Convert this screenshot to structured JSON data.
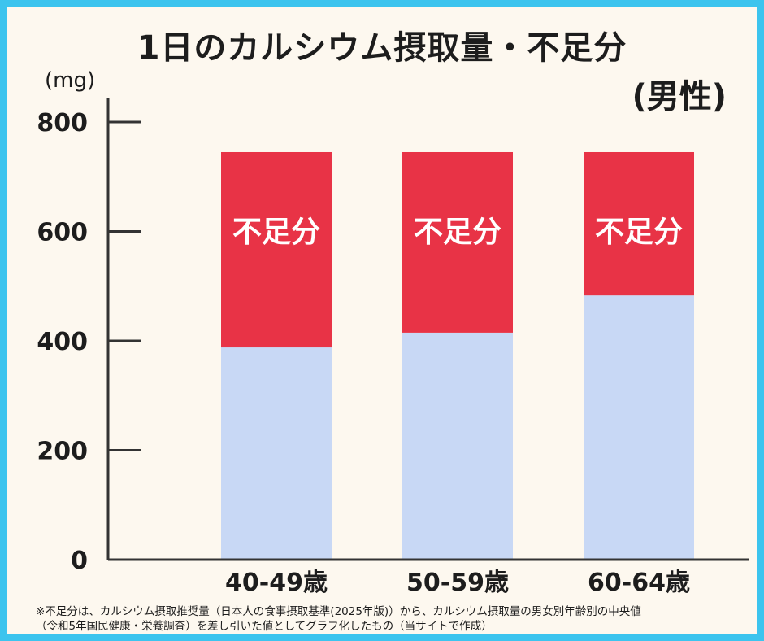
{
  "title": "1日のカルシウム摂取量・不足分",
  "subtitle": "(男性)",
  "unit": "(mg)",
  "notes": [
    "※不足分は、カルシウム摂取推奨量（日本人の食事摂取基準(2025年版)）から、カルシウム摂取量の男女別年齢別の中央値",
    "（令和5年国民健康・栄養調査）を差し引いた値としてグラフ化したもの（当サイトで作成）"
  ],
  "chart_data": {
    "type": "bar",
    "stacked": true,
    "categories": [
      "40-49歳",
      "50-59歳",
      "60-64歳"
    ],
    "series": [
      {
        "name": "",
        "color": "#c8d8f5",
        "values": [
          388,
          415,
          483
        ]
      },
      {
        "name": "不足分",
        "color": "#e83346",
        "values": [
          357,
          330,
          262
        ],
        "label": "不足分"
      }
    ],
    "totals": [
      745,
      745,
      745
    ],
    "ylim": [
      0,
      800
    ],
    "yticks": [
      0,
      200,
      400,
      600,
      800
    ],
    "ylabel": "(mg)",
    "grid": false,
    "legend": "none"
  }
}
